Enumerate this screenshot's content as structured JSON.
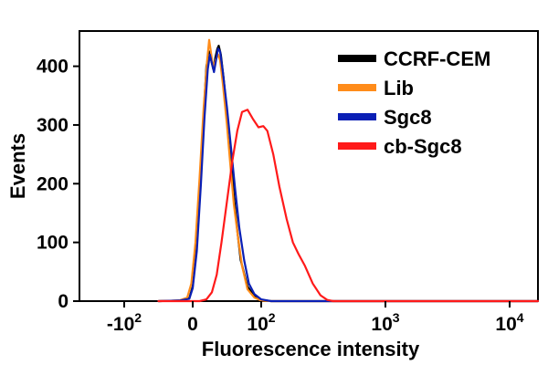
{
  "chart_data": {
    "type": "line",
    "title": "",
    "xlabel": "Fluorescence intensity",
    "ylabel": "Events",
    "x_scale": "biexponential",
    "x_ticks": [
      {
        "value": -100,
        "base": "-10",
        "exp": "2"
      },
      {
        "value": 0,
        "base": "0",
        "exp": ""
      },
      {
        "value": 100,
        "base": "10",
        "exp": "2"
      },
      {
        "value": 1000,
        "base": "10",
        "exp": "3"
      },
      {
        "value": 10000,
        "base": "10",
        "exp": "4"
      }
    ],
    "y_ticks": [
      "0",
      "100",
      "200",
      "300",
      "400"
    ],
    "ylim": [
      0,
      460
    ],
    "grid": false,
    "legend_position": "top-right",
    "series": [
      {
        "name": "CCRF-CEM",
        "color": "#000000",
        "points": [
          [
            -50,
            0
          ],
          [
            -20,
            1
          ],
          [
            -5,
            5
          ],
          [
            0,
            25
          ],
          [
            5,
            90
          ],
          [
            10,
            190
          ],
          [
            15,
            300
          ],
          [
            20,
            400
          ],
          [
            24,
            425
          ],
          [
            27,
            410
          ],
          [
            30,
            395
          ],
          [
            33,
            415
          ],
          [
            36,
            430
          ],
          [
            38,
            435
          ],
          [
            41,
            420
          ],
          [
            45,
            380
          ],
          [
            50,
            320
          ],
          [
            55,
            250
          ],
          [
            60,
            180
          ],
          [
            65,
            120
          ],
          [
            70,
            70
          ],
          [
            80,
            25
          ],
          [
            90,
            8
          ],
          [
            100,
            2
          ],
          [
            120,
            0
          ],
          [
            20000,
            0
          ]
        ]
      },
      {
        "name": "Lib",
        "color": "#ff8c1a",
        "points": [
          [
            -50,
            0
          ],
          [
            -20,
            1
          ],
          [
            -8,
            6
          ],
          [
            -2,
            30
          ],
          [
            4,
            100
          ],
          [
            10,
            210
          ],
          [
            16,
            330
          ],
          [
            21,
            410
          ],
          [
            24,
            445
          ],
          [
            27,
            420
          ],
          [
            30,
            395
          ],
          [
            33,
            410
          ],
          [
            37,
            420
          ],
          [
            40,
            410
          ],
          [
            44,
            370
          ],
          [
            50,
            300
          ],
          [
            55,
            230
          ],
          [
            60,
            165
          ],
          [
            66,
            110
          ],
          [
            72,
            60
          ],
          [
            80,
            20
          ],
          [
            90,
            6
          ],
          [
            100,
            1
          ],
          [
            120,
            0
          ],
          [
            20000,
            0
          ]
        ]
      },
      {
        "name": "Sgc8",
        "color": "#0a1fb5",
        "points": [
          [
            -50,
            0
          ],
          [
            -20,
            1
          ],
          [
            -5,
            4
          ],
          [
            0,
            22
          ],
          [
            6,
            85
          ],
          [
            12,
            200
          ],
          [
            17,
            310
          ],
          [
            22,
            395
          ],
          [
            25,
            420
          ],
          [
            28,
            405
          ],
          [
            31,
            390
          ],
          [
            34,
            410
          ],
          [
            37,
            430
          ],
          [
            40,
            425
          ],
          [
            44,
            390
          ],
          [
            50,
            330
          ],
          [
            56,
            260
          ],
          [
            62,
            190
          ],
          [
            68,
            125
          ],
          [
            75,
            70
          ],
          [
            82,
            30
          ],
          [
            90,
            12
          ],
          [
            100,
            3
          ],
          [
            120,
            0
          ],
          [
            20000,
            0
          ]
        ]
      },
      {
        "name": "cb-Sgc8",
        "color": "#ff1a1a",
        "points": [
          [
            -50,
            0
          ],
          [
            10,
            0
          ],
          [
            20,
            3
          ],
          [
            28,
            15
          ],
          [
            35,
            45
          ],
          [
            42,
            100
          ],
          [
            50,
            170
          ],
          [
            58,
            240
          ],
          [
            65,
            290
          ],
          [
            72,
            322
          ],
          [
            80,
            326
          ],
          [
            88,
            310
          ],
          [
            96,
            296
          ],
          [
            104,
            298
          ],
          [
            112,
            290
          ],
          [
            125,
            250
          ],
          [
            140,
            195
          ],
          [
            160,
            140
          ],
          [
            180,
            100
          ],
          [
            200,
            80
          ],
          [
            225,
            60
          ],
          [
            260,
            30
          ],
          [
            300,
            10
          ],
          [
            340,
            2
          ],
          [
            380,
            0
          ],
          [
            20000,
            0
          ]
        ]
      }
    ]
  }
}
